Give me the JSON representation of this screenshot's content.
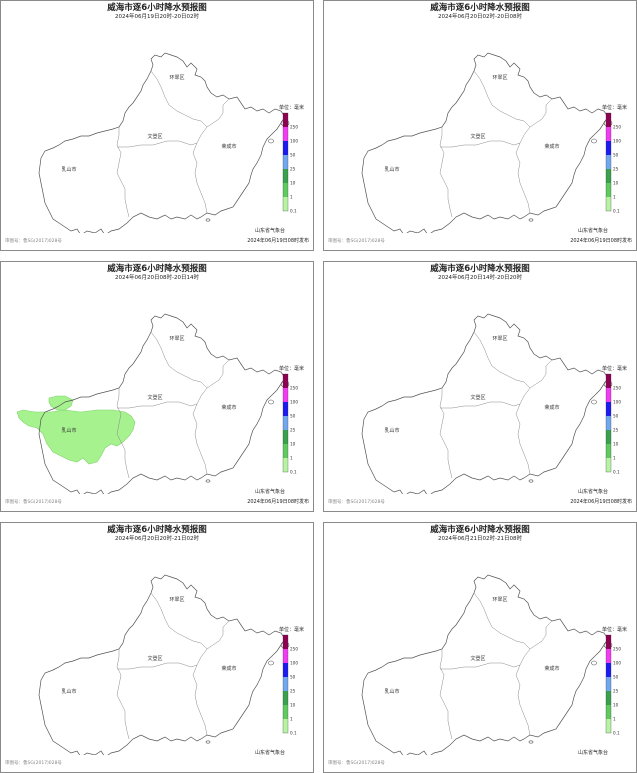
{
  "colors": {
    "legend": [
      "#b6f3a2",
      "#5ecb5e",
      "#3aa24d",
      "#6fa8ef",
      "#1c1cf2",
      "#f23bf2",
      "#8e0052"
    ],
    "rain_fill": "#a6f28e"
  },
  "map": {
    "district_labels": [
      "环翠区",
      "文登区",
      "荣成市",
      "乳山市"
    ]
  },
  "legend": {
    "title": "单位：毫米",
    "ticks": [
      "250",
      "100",
      "50",
      "25",
      "10",
      "1",
      "0.1"
    ]
  },
  "footer": {
    "issuer": "山东省气象台",
    "approval": "审图号：鲁SG(2017)028号"
  },
  "panels": [
    {
      "title": "威海市逐6小时降水预报图",
      "subtitle": "2024年06月19日20时-20日02时",
      "issued": "2024年06月19日08时发布",
      "rain": false
    },
    {
      "title": "威海市逐6小时降水预报图",
      "subtitle": "2024年06月20日02时-20日08时",
      "issued": "2024年06月19日08时发布",
      "rain": false
    },
    {
      "title": "威海市逐6小时降水预报图",
      "subtitle": "2024年06月20日08时-20日14时",
      "issued": "2024年06月19日08时发布",
      "rain": true
    },
    {
      "title": "威海市逐6小时降水预报图",
      "subtitle": "2024年06月20日14时-20日20时",
      "issued": "2024年06月19日08时发布",
      "rain": false
    },
    {
      "title": "威海市逐6小时降水预报图",
      "subtitle": "2024年06月20日20时-21日02时",
      "issued": "",
      "rain": false
    },
    {
      "title": "威海市逐6小时降水预报图",
      "subtitle": "2024年06月21日02时-21日08时",
      "issued": "",
      "rain": false
    }
  ]
}
